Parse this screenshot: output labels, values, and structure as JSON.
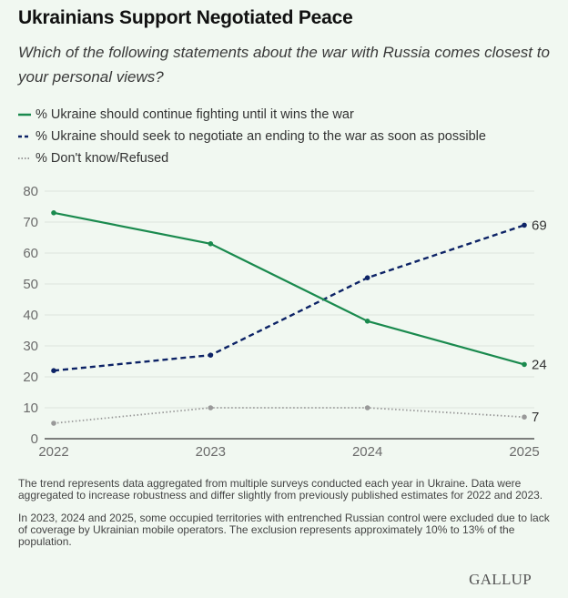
{
  "header": {
    "title": "Ukrainians Support Negotiated Peace",
    "subtitle": "Which of the following statements about the war with Russia comes closest to your personal views?"
  },
  "chart_data": {
    "type": "line",
    "title": "Ukrainians Support Negotiated Peace",
    "subtitle": "Which of the following statements about the war with Russia comes closest to your personal views?",
    "xlabel": "",
    "ylabel": "",
    "x": [
      "2022",
      "2023",
      "2024",
      "2025"
    ],
    "ylim": [
      0,
      80
    ],
    "yticks": [
      0,
      10,
      20,
      30,
      40,
      50,
      60,
      70,
      80
    ],
    "grid": true,
    "legend_position": "top-left",
    "series": [
      {
        "name": "% Ukraine should continue fighting until it wins the war",
        "values": [
          73,
          63,
          38,
          24
        ],
        "color": "#1a8a4e",
        "style": "solid",
        "end_label": "24"
      },
      {
        "name": "% Ukraine should seek to negotiate an ending to the war as soon as possible",
        "values": [
          22,
          27,
          52,
          69
        ],
        "color": "#0d2366",
        "style": "dashed",
        "end_label": "69"
      },
      {
        "name": "% Don't know/Refused",
        "values": [
          5,
          10,
          10,
          7
        ],
        "color": "#999999",
        "style": "dotted",
        "end_label": "7"
      }
    ]
  },
  "legend": [
    {
      "label": "% Ukraine should continue fighting until it wins the war",
      "style": "solid",
      "color": "#1a8a4e"
    },
    {
      "label": "% Ukraine should seek to negotiate an ending to the war as soon as possible",
      "style": "dashed",
      "color": "#0d2366"
    },
    {
      "label": "% Don't know/Refused",
      "style": "dotted",
      "color": "#999999"
    }
  ],
  "notes": [
    "The trend represents data aggregated from multiple surveys conducted each year in Ukraine. Data were aggregated to increase robustness and differ slightly from previously published estimates for 2022 and 2023.",
    "In 2023, 2024 and 2025, some occupied territories with entrenched Russian control were excluded due to lack of coverage by Ukrainian mobile operators. The exclusion represents approximately 10% to 13% of the population."
  ],
  "logo": "GALLUP"
}
